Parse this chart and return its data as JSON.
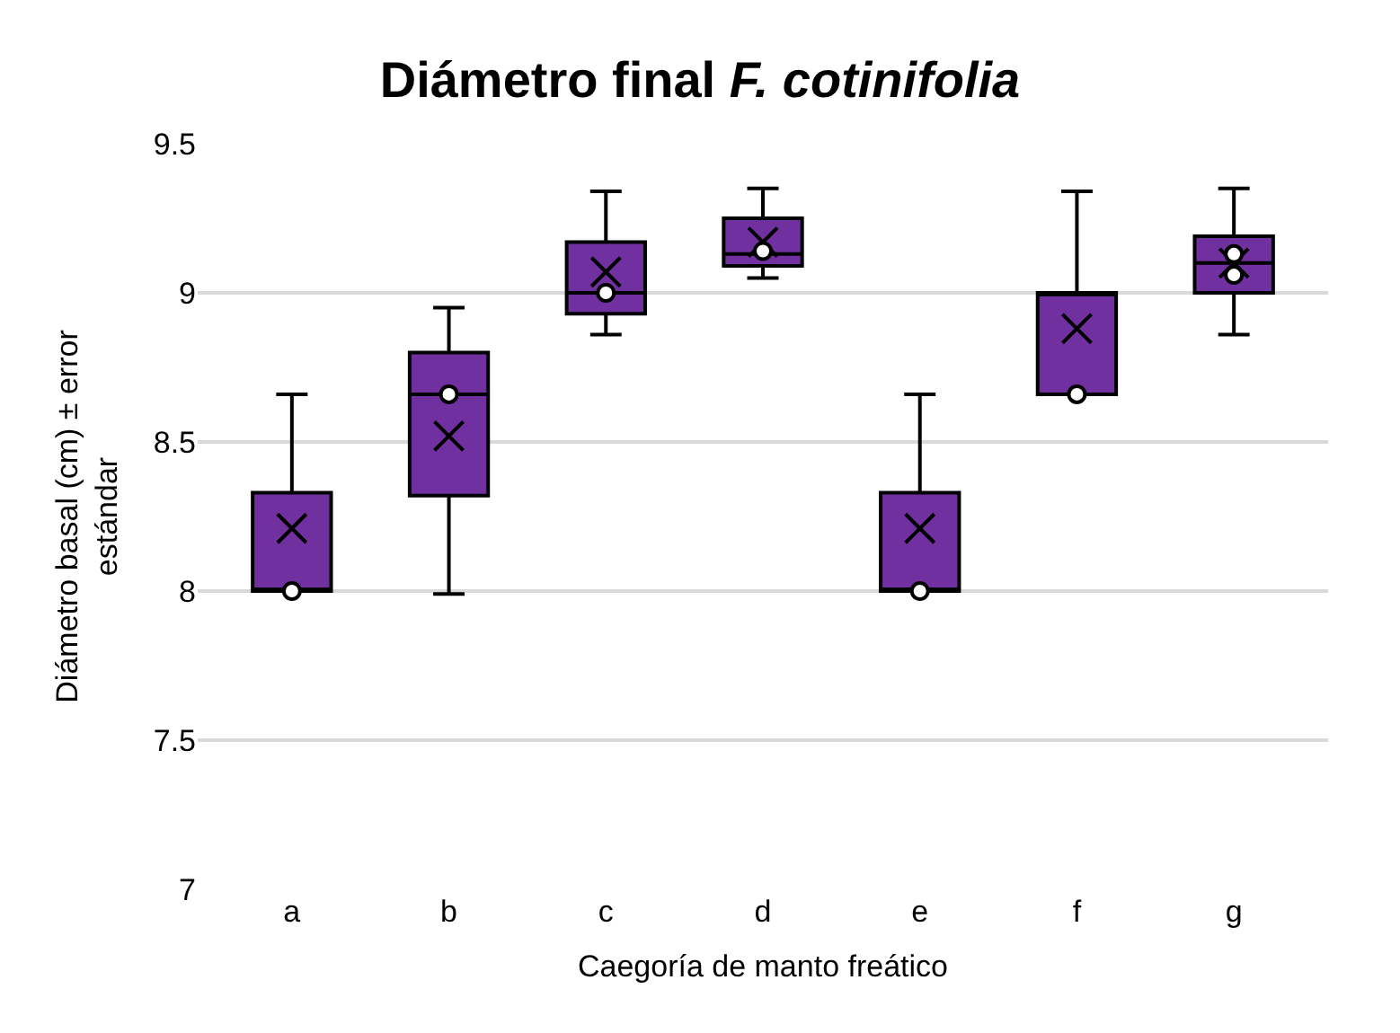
{
  "chart_data": {
    "type": "box",
    "title": "Diámetro final F. cotinifolia",
    "xlabel": "Caegoría de manto freático",
    "ylabel": "Diámetro basal (cm) ± error estándar",
    "categories": [
      "a",
      "b",
      "c",
      "d",
      "e",
      "f",
      "g"
    ],
    "color": "#7030a0",
    "boxes": [
      {
        "low": 8.0,
        "q1": 8.0,
        "median": 8.0,
        "q3": 8.33,
        "high": 8.66,
        "mean": 8.21
      },
      {
        "low": 7.99,
        "q1": 8.32,
        "median": 8.66,
        "q3": 8.8,
        "high": 8.95,
        "mean": 8.52
      },
      {
        "low": 8.86,
        "q1": 8.93,
        "median": 9.0,
        "q3": 9.17,
        "high": 9.34,
        "mean": 9.07
      },
      {
        "low": 9.05,
        "q1": 9.09,
        "median": 9.13,
        "q3": 9.25,
        "high": 9.35,
        "mean": 9.17
      },
      {
        "low": 8.0,
        "q1": 8.0,
        "median": 8.0,
        "q3": 8.33,
        "high": 8.66,
        "mean": 8.21
      },
      {
        "low": 8.66,
        "q1": 8.66,
        "median": 9.0,
        "q3": 9.0,
        "high": 9.34,
        "mean": 8.88
      },
      {
        "low": 8.86,
        "q1": 9.0,
        "median": 9.1,
        "q3": 9.19,
        "high": 9.35,
        "mean": 9.1
      }
    ],
    "series": [
      {
        "type": "scatter",
        "marker": "circle",
        "color": "#ffffff",
        "x": [
          "a",
          "b",
          "c",
          "d",
          "e",
          "f",
          "g",
          "g"
        ],
        "values": [
          8.0,
          8.66,
          9.0,
          9.14,
          8.0,
          8.66,
          9.13,
          9.06
        ]
      }
    ],
    "ylim": [
      7,
      9.5
    ],
    "yticks": [
      7,
      7.5,
      8,
      8.5,
      9,
      9.5
    ],
    "grid": "y"
  }
}
